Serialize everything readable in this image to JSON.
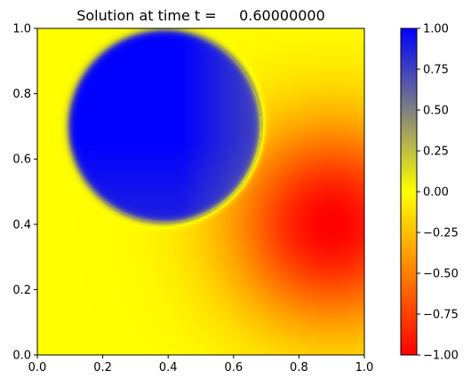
{
  "chart_data": [
    {
      "type": "heatmap",
      "title": "Solution at time t =     0.60000000",
      "xlabel": "",
      "ylabel": "",
      "xlim": [
        0.0,
        1.0
      ],
      "ylim": [
        0.0,
        1.0
      ],
      "x_ticks": [
        "0.0",
        "0.2",
        "0.4",
        "0.6",
        "0.8",
        "1.0"
      ],
      "y_ticks": [
        "0.0",
        "0.2",
        "0.4",
        "0.6",
        "0.8",
        "1.0"
      ],
      "grid": false,
      "features": [
        {
          "name": "disk",
          "center": [
            0.39,
            0.7
          ],
          "radius": 0.295,
          "value": 1.0
        },
        {
          "name": "pulse",
          "center": [
            0.9,
            0.4
          ],
          "width": 0.22,
          "value": -1.0
        }
      ],
      "colorbar": {
        "range": [
          -1.0,
          1.0
        ],
        "ticks": [
          "−1.00",
          "−0.75",
          "−0.50",
          "−0.25",
          "0.00",
          "0.25",
          "0.50",
          "0.75",
          "1.00"
        ],
        "colors": {
          "min": "#ff0000",
          "mid_low": "#ff8000",
          "zero": "#ffff00",
          "mid_high": "#808080",
          "max": "#0000ff"
        }
      }
    }
  ]
}
